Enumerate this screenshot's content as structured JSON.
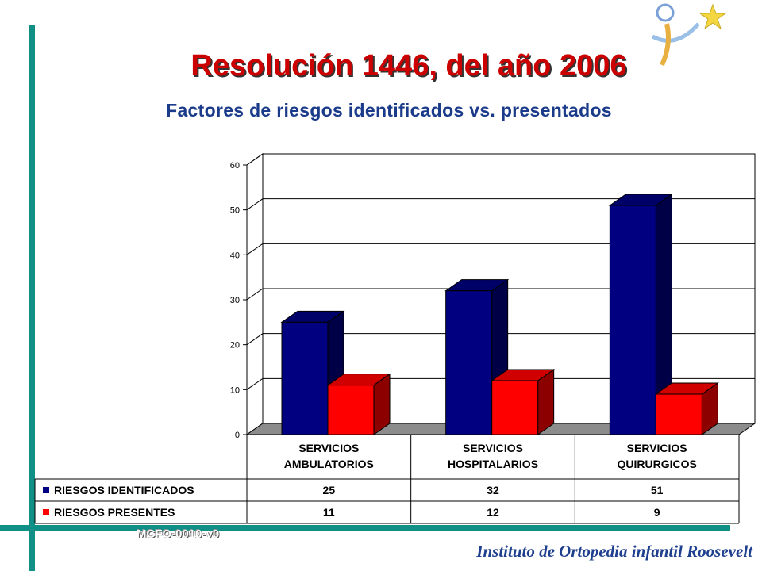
{
  "slide": {
    "title": "Resolución 1446, del año 2006",
    "subtitle": "Factores de riesgos identificados vs. presentados",
    "footer_code": "MCFO-0010-v0",
    "institution": "Instituto de Ortopedia infantil Roosevelt"
  },
  "colors": {
    "accent_bar": "#0f8f86",
    "title": "#cc0000",
    "subtitle": "#1a3a8a",
    "series_identificados": "#000080",
    "series_presentes": "#ff0000"
  },
  "chart_data": {
    "type": "bar",
    "categories": [
      [
        "SERVICIOS",
        "AMBULATORIOS"
      ],
      [
        "SERVICIOS",
        "HOSPITALARIOS"
      ],
      [
        "SERVICIOS",
        "QUIRURGICOS"
      ]
    ],
    "series": [
      {
        "name": "RIESGOS IDENTIFICADOS",
        "values": [
          25,
          32,
          51
        ],
        "color": "#000080"
      },
      {
        "name": "RIESGOS PRESENTES",
        "values": [
          11,
          12,
          9
        ],
        "color": "#ff0000"
      }
    ],
    "ylim": [
      0,
      60
    ],
    "yticks": [
      0,
      10,
      20,
      30,
      40,
      50,
      60
    ],
    "grid": true,
    "style": "3d",
    "data_table": true
  }
}
